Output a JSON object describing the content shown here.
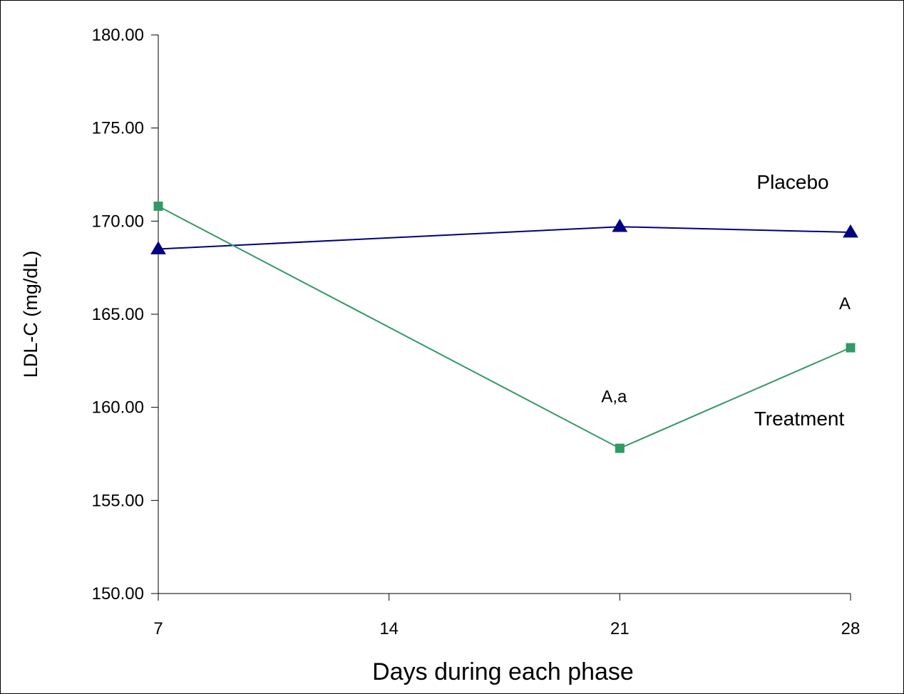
{
  "chart_data": {
    "type": "line",
    "xlabel": "Days during each phase",
    "ylabel": "LDL-C (mg/dL)",
    "x_ticks": [
      7,
      14,
      21,
      28
    ],
    "x_tick_labels": [
      "7",
      "14",
      "21",
      "28"
    ],
    "xlim": [
      7,
      28
    ],
    "ylim": [
      150,
      180
    ],
    "y_ticks": [
      150,
      155,
      160,
      165,
      170,
      175,
      180
    ],
    "y_tick_labels": [
      "150.00",
      "155.00",
      "160.00",
      "165.00",
      "170.00",
      "175.00",
      "180.00"
    ],
    "grid": false,
    "legend": "none",
    "series": [
      {
        "name": "Placebo",
        "color": "#000080",
        "marker": "triangle",
        "x": [
          7,
          21,
          28
        ],
        "y": [
          168.5,
          169.7,
          169.4
        ]
      },
      {
        "name": "Treatment",
        "color": "#339966",
        "marker": "square",
        "x": [
          7,
          21,
          28
        ],
        "y": [
          170.8,
          157.8,
          163.2
        ]
      }
    ],
    "annotations": [
      {
        "text": "A,a",
        "x": 21,
        "y": 160.5
      },
      {
        "text": "A",
        "x": 28,
        "y": 165.5
      }
    ]
  }
}
